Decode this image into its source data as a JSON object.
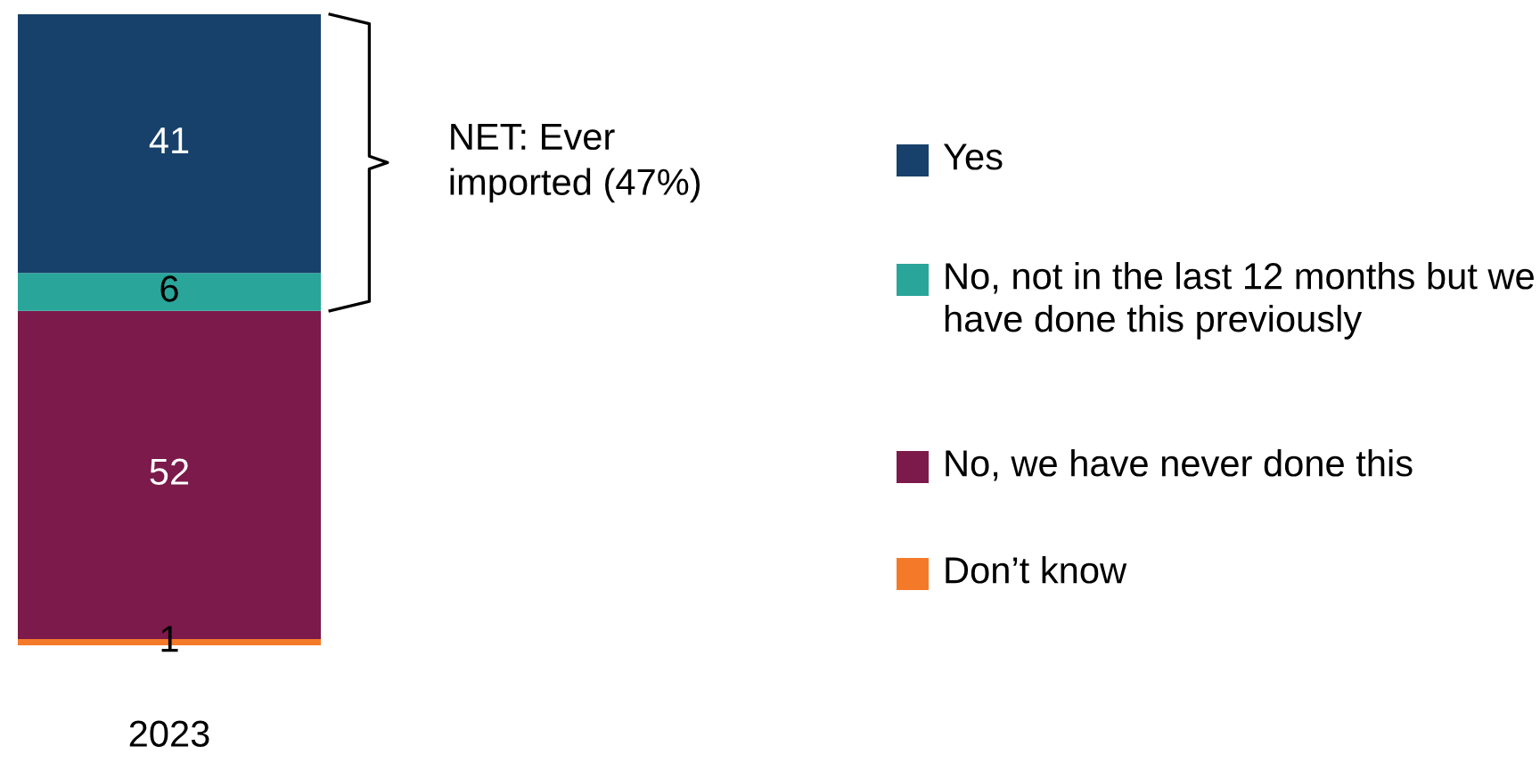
{
  "chart_data": {
    "type": "bar",
    "stacked": true,
    "categories": [
      "2023"
    ],
    "data_labels": true,
    "legend": "right",
    "annotations": [
      "NET: Ever\nimported (47%)"
    ],
    "series": [
      {
        "name": "Don’t know",
        "color": "#f47a2a",
        "values": [
          1
        ]
      },
      {
        "name": "No, we have never done this",
        "color": "#7b1a4b",
        "values": [
          52
        ]
      },
      {
        "name": "No, not in the last 12 months but we have done this previously",
        "color": "#2aa59a",
        "values": [
          6
        ]
      },
      {
        "name": "Yes",
        "color": "#17416a",
        "values": [
          41
        ]
      }
    ]
  }
}
